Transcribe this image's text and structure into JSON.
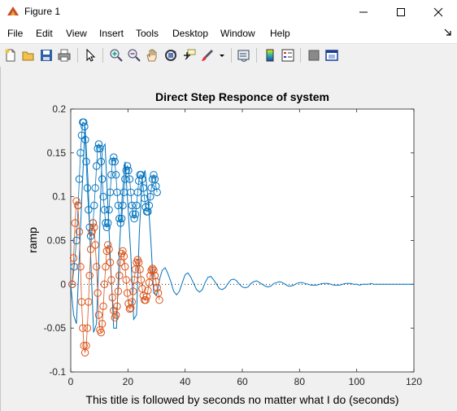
{
  "window": {
    "title": "Figure 1"
  },
  "menu": [
    "File",
    "Edit",
    "View",
    "Insert",
    "Tools",
    "Desktop",
    "Window",
    "Help"
  ],
  "toolbar": {
    "icons": [
      "new-figure-icon",
      "open-file-icon",
      "save-icon",
      "print-icon",
      "pointer-icon",
      "zoom-in-icon",
      "zoom-out-icon",
      "pan-hand-icon",
      "rotate-3d-icon",
      "data-cursor-icon",
      "brush-icon",
      "link-plot-icon",
      "colorbar-icon",
      "legend-icon",
      "hide-plot-tools-icon",
      "show-plot-tools-icon"
    ]
  },
  "colors": {
    "series1": "#0072bd",
    "series2": "#d95319"
  },
  "chart_data": {
    "type": "line",
    "title": "Direct Step Responce of system",
    "xlabel": "This title is followed by seconds no matter what I do (seconds)",
    "ylabel": "ramp",
    "xlim": [
      0,
      120
    ],
    "ylim": [
      -0.1,
      0.2
    ],
    "xticks": [
      0,
      20,
      40,
      60,
      80,
      100,
      120
    ],
    "yticks": [
      -0.1,
      -0.05,
      0,
      0.05,
      0.1,
      0.15,
      0.2
    ],
    "xtick_labels": [
      "0",
      "20",
      "40",
      "60",
      "80",
      "100",
      "120"
    ],
    "ytick_labels": [
      "-0.1",
      "-0.05",
      "0",
      "0.05",
      "0.1",
      "0.15",
      "0.2"
    ],
    "grid": false,
    "zero_line": {
      "y": 0,
      "style": "dotted"
    },
    "series": [
      {
        "marker": "line",
        "color": "#0072bd",
        "x": [
          0,
          1,
          2,
          3,
          4,
          5,
          6,
          7,
          8,
          9,
          10,
          11,
          12,
          13,
          14,
          15,
          16,
          17,
          18,
          19,
          20,
          21,
          22,
          23,
          24,
          25,
          26,
          27,
          28,
          29,
          30,
          31,
          32,
          33,
          34,
          35,
          36,
          37,
          38,
          39,
          40,
          41,
          42,
          43,
          44,
          45,
          46,
          47,
          48,
          49,
          50,
          51,
          52,
          53,
          54,
          55,
          56,
          57,
          58,
          59,
          60,
          61,
          62,
          63,
          64,
          65,
          66,
          67,
          68,
          69,
          70,
          71,
          72,
          73,
          74,
          75,
          76,
          77,
          78,
          79,
          80,
          81,
          82,
          83,
          84,
          85,
          86,
          87,
          88,
          89,
          90,
          91,
          92,
          93,
          94,
          95,
          96,
          97,
          98,
          99,
          100,
          101,
          102,
          103,
          104,
          105,
          106,
          107,
          108,
          109,
          110,
          111,
          112,
          113,
          114,
          115,
          116,
          117,
          118,
          119,
          120
        ],
        "y": [
          0,
          -0.035,
          -0.045,
          0.03,
          0.11,
          0.18,
          0.12,
          0.03,
          -0.055,
          -0.045,
          0.05,
          0.155,
          0.16,
          0.09,
          0.02,
          -0.05,
          -0.05,
          0.04,
          0.1,
          0.14,
          0.09,
          0.035,
          -0.04,
          -0.035,
          0.06,
          0.12,
          0.13,
          0.1,
          0.05,
          -0.01,
          -0.012,
          0.005,
          0.016,
          0.019,
          0.012,
          0.003,
          -0.008,
          -0.012,
          -0.008,
          0.002,
          0.011,
          0.013,
          0.008,
          0.001,
          -0.006,
          -0.009,
          -0.006,
          0.002,
          0.008,
          0.009,
          0.005,
          0,
          -0.005,
          -0.006,
          -0.004,
          0.001,
          0.005,
          0.006,
          0.004,
          0,
          -0.003,
          -0.004,
          -0.003,
          0.001,
          0.003,
          0.004,
          0.002,
          0,
          -0.002,
          -0.003,
          -0.002,
          0.001,
          0.002,
          0.003,
          0.002,
          0,
          -0.002,
          -0.002,
          -0.001,
          0.001,
          0.002,
          0.002,
          0.001,
          0,
          -0.001,
          -0.001,
          -0.001,
          0,
          0.001,
          0.001,
          0.001,
          0,
          -0.001,
          -0.001,
          -0.001,
          0,
          0.001,
          0.001,
          0.001,
          0,
          0,
          -0.001,
          0,
          0,
          0,
          0.001,
          0,
          0,
          0,
          0,
          0,
          0,
          0,
          0,
          0,
          0,
          0,
          0,
          0,
          0,
          0
        ]
      },
      {
        "marker": "circle",
        "color": "#0072bd",
        "x": [
          0.5,
          1.2,
          2.0,
          2.6,
          3.0,
          3.4,
          3.8,
          4.2,
          4.5,
          4.8,
          5.1,
          5.4,
          5.8,
          6.2,
          6.6,
          7.0,
          7.4,
          7.8,
          8.2,
          8.6,
          9.0,
          9.4,
          9.8,
          10.2,
          10.6,
          11.0,
          11.4,
          11.8,
          12.2,
          12.6,
          13.0,
          13.4,
          13.8,
          14.2,
          14.6,
          15.0,
          15.4,
          15.8,
          16.2,
          16.6,
          17.0,
          17.4,
          17.8,
          18.2,
          18.6,
          19.0,
          19.4,
          19.8,
          20.2,
          20.6,
          21.0,
          21.4,
          21.8,
          22.2,
          22.6,
          23.0,
          23.4,
          23.8,
          24.2,
          24.6,
          25.0,
          25.4,
          25.8,
          26.2,
          26.6,
          27.0,
          27.4,
          27.8,
          28.2,
          28.6,
          29.0,
          29.4,
          29.8,
          30.2
        ],
        "y": [
          0.0,
          0.02,
          0.05,
          0.09,
          0.12,
          0.15,
          0.17,
          0.185,
          0.185,
          0.18,
          0.165,
          0.14,
          0.11,
          0.085,
          0.065,
          0.055,
          0.06,
          0.07,
          0.09,
          0.11,
          0.135,
          0.155,
          0.16,
          0.155,
          0.14,
          0.12,
          0.1,
          0.085,
          0.07,
          0.065,
          0.07,
          0.085,
          0.105,
          0.125,
          0.14,
          0.145,
          0.14,
          0.125,
          0.105,
          0.09,
          0.075,
          0.07,
          0.075,
          0.09,
          0.105,
          0.12,
          0.13,
          0.135,
          0.13,
          0.12,
          0.105,
          0.09,
          0.08,
          0.075,
          0.08,
          0.09,
          0.105,
          0.118,
          0.125,
          0.125,
          0.12,
          0.11,
          0.098,
          0.088,
          0.083,
          0.083,
          0.09,
          0.1,
          0.11,
          0.12,
          0.125,
          0.12,
          0.112,
          0.105
        ]
      },
      {
        "marker": "circle",
        "color": "#d95319",
        "x": [
          0.5,
          1.0,
          1.5,
          2.0,
          2.5,
          3.0,
          3.4,
          3.8,
          4.2,
          4.6,
          5.0,
          5.4,
          5.8,
          6.2,
          6.6,
          7.0,
          7.4,
          7.8,
          8.2,
          8.6,
          9.0,
          9.4,
          9.8,
          10.2,
          10.6,
          11.0,
          11.4,
          11.8,
          12.2,
          12.6,
          13.0,
          13.4,
          13.8,
          14.2,
          14.6,
          15.0,
          15.4,
          15.8,
          16.2,
          16.6,
          17.0,
          17.4,
          17.8,
          18.2,
          18.6,
          19.0,
          19.4,
          19.8,
          20.2,
          20.6,
          21.0,
          21.4,
          21.8,
          22.2,
          22.6,
          23.0,
          23.4,
          23.8,
          24.2,
          24.6,
          25.0,
          25.4,
          25.8,
          26.2,
          26.6,
          27.0,
          27.4,
          27.8,
          28.2,
          28.6,
          29.0,
          29.4,
          29.8,
          30.2,
          30.6,
          31.0
        ],
        "y": [
          0.0,
          0.03,
          0.07,
          0.095,
          0.09,
          0.06,
          0.02,
          -0.02,
          -0.05,
          -0.07,
          -0.078,
          -0.07,
          -0.05,
          -0.02,
          0.01,
          0.04,
          0.06,
          0.07,
          0.065,
          0.045,
          0.02,
          -0.01,
          -0.035,
          -0.052,
          -0.055,
          -0.045,
          -0.025,
          0.0,
          0.02,
          0.038,
          0.045,
          0.04,
          0.025,
          0.005,
          -0.015,
          -0.03,
          -0.038,
          -0.035,
          -0.025,
          -0.008,
          0.01,
          0.025,
          0.035,
          0.038,
          0.032,
          0.02,
          0.005,
          -0.01,
          -0.022,
          -0.028,
          -0.027,
          -0.02,
          -0.008,
          0.005,
          0.017,
          0.025,
          0.028,
          0.025,
          0.017,
          0.005,
          -0.005,
          -0.013,
          -0.018,
          -0.018,
          -0.014,
          -0.007,
          0.002,
          0.01,
          0.016,
          0.018,
          0.016,
          0.01,
          0.003,
          -0.004,
          -0.01,
          -0.018
        ]
      }
    ]
  }
}
